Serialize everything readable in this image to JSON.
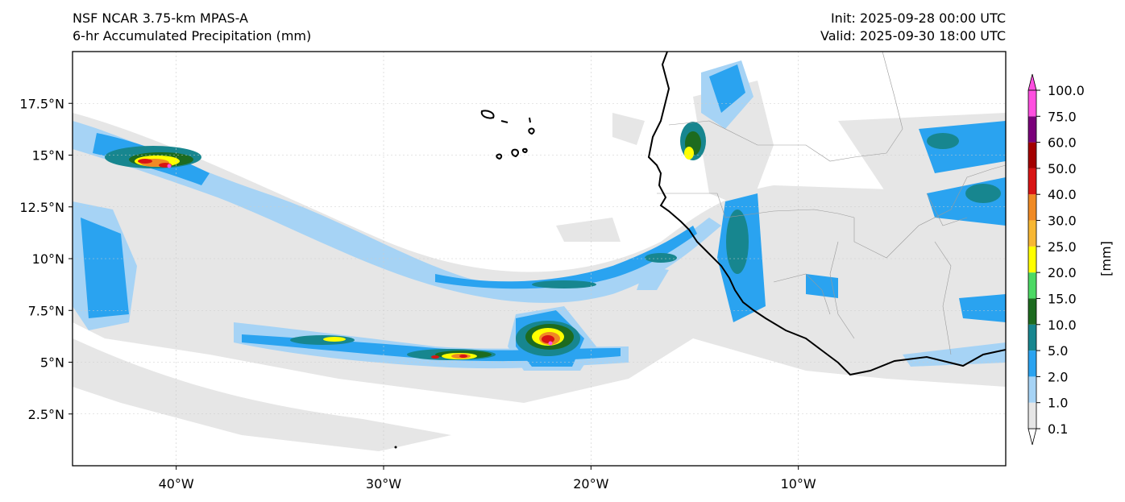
{
  "header": {
    "model": "NSF NCAR 3.75-km MPAS-A",
    "field": "6-hr Accumulated Precipitation (mm)",
    "init": "Init: 2025-09-28 00:00 UTC",
    "valid": "Valid: 2025-09-30 18:00 UTC"
  },
  "map": {
    "lon_range": [
      -45,
      0
    ],
    "lat_range": [
      0,
      20
    ],
    "lon_ticks": [
      {
        "value": -40,
        "label": "40°W"
      },
      {
        "value": -30,
        "label": "30°W"
      },
      {
        "value": -20,
        "label": "20°W"
      },
      {
        "value": -10,
        "label": "10°W"
      }
    ],
    "lat_ticks": [
      {
        "value": 17.5,
        "label": "17.5°N"
      },
      {
        "value": 15,
        "label": "15°N"
      },
      {
        "value": 12.5,
        "label": "12.5°N"
      },
      {
        "value": 10,
        "label": "10°N"
      },
      {
        "value": 7.5,
        "label": "7.5°N"
      },
      {
        "value": 5,
        "label": "5°N"
      },
      {
        "value": 2.5,
        "label": "2.5°N"
      }
    ],
    "grid": true
  },
  "colorbar": {
    "unit_label": "[mm]",
    "levels": [
      "0.1",
      "1.0",
      "2.0",
      "5.0",
      "10.0",
      "15.0",
      "20.0",
      "25.0",
      "30.0",
      "40.0",
      "50.0",
      "60.0",
      "75.0",
      "100.0"
    ],
    "colors": [
      "#e6e6e6",
      "#a6d3f5",
      "#2aa3f0",
      "#17868f",
      "#1d6b1f",
      "#4cd964",
      "#ffff00",
      "#f7b733",
      "#f08a24",
      "#d81414",
      "#a30000",
      "#7a007a",
      "#ff4fe0"
    ]
  }
}
